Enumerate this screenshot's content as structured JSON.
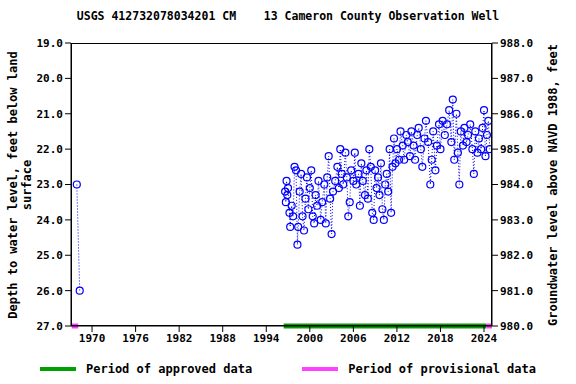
{
  "chart_data": {
    "type": "line",
    "title": "USGS 412732078034201 CM    13 Cameron County Observation Well",
    "x_label": null,
    "y_label": "Depth to water level, feet below land surface",
    "y2_label": "Groundwater level above NAVD 1988, feet",
    "xlim": [
      1967.1,
      2025.1
    ],
    "xticks": [
      1970,
      1976,
      1982,
      1988,
      1994,
      2000,
      2006,
      2012,
      2018,
      2024
    ],
    "ylim": [
      19,
      27
    ],
    "yticks": [
      {
        "value": 19,
        "label": "19.0"
      },
      {
        "value": 20,
        "label": "20.0"
      },
      {
        "value": 21,
        "label": "21.0"
      },
      {
        "value": 22,
        "label": "22.0"
      },
      {
        "value": 23,
        "label": "23.0"
      },
      {
        "value": 24,
        "label": "24.0"
      },
      {
        "value": 25,
        "label": "25.0"
      },
      {
        "value": 26,
        "label": "26.0"
      },
      {
        "value": 27,
        "label": "27.0"
      }
    ],
    "y2lim": [
      980,
      988
    ],
    "y2ticks": [
      {
        "value": 980,
        "label": "980.0"
      },
      {
        "value": 981,
        "label": "981.0"
      },
      {
        "value": 982,
        "label": "982.0"
      },
      {
        "value": 983,
        "label": "983.0"
      },
      {
        "value": 984,
        "label": "984.0"
      },
      {
        "value": 985,
        "label": "985.0"
      },
      {
        "value": 986,
        "label": "986.0"
      },
      {
        "value": 987,
        "label": "987.0"
      },
      {
        "value": 988,
        "label": "988.0"
      }
    ],
    "grid": false,
    "legend": "bottom",
    "x": [
      1967.9,
      1968.3,
      1982,
      1996.6,
      1996.7,
      1996.8,
      1996.9,
      1997.0,
      1997.2,
      1997.3,
      1997.5,
      1997.7,
      1997.9,
      1998.1,
      1998.3,
      1998.4,
      1998.6,
      1998.8,
      1999.0,
      1999.2,
      1999.4,
      1999.6,
      1999.8,
      2000.0,
      2000.2,
      2000.4,
      2000.6,
      2000.8,
      2001.0,
      2001.2,
      2001.5,
      2001.7,
      2002.0,
      2002.2,
      2002.4,
      2002.6,
      2002.8,
      2003.0,
      2003.2,
      2003.5,
      2003.8,
      2004.0,
      2004.2,
      2004.4,
      2004.6,
      2004.9,
      2005.1,
      2005.3,
      2005.5,
      2005.7,
      2006.0,
      2006.2,
      2006.4,
      2006.7,
      2006.9,
      2007.1,
      2007.3,
      2007.6,
      2007.8,
      2008.0,
      2008.2,
      2008.4,
      2008.6,
      2008.8,
      2009.0,
      2009.2,
      2009.4,
      2009.6,
      2009.8,
      2010.0,
      2010.2,
      2010.4,
      2010.6,
      2010.8,
      2011.0,
      2011.2,
      2011.4,
      2011.6,
      2011.8,
      2012.0,
      2012.3,
      2012.5,
      2012.8,
      2013.0,
      2013.3,
      2013.5,
      2013.8,
      2014.0,
      2014.3,
      2014.5,
      2014.8,
      2015.0,
      2015.3,
      2015.5,
      2015.8,
      2016.0,
      2016.3,
      2016.6,
      2016.8,
      2017.0,
      2017.3,
      2017.5,
      2017.8,
      2018.0,
      2018.3,
      2018.6,
      2018.9,
      2019.2,
      2019.5,
      2019.7,
      2019.9,
      2020.2,
      2020.4,
      2020.6,
      2020.8,
      2021.1,
      2021.3,
      2021.6,
      2021.8,
      2022.1,
      2022.4,
      2022.6,
      2022.8,
      2023.1,
      2023.3,
      2023.6,
      2023.8,
      2024.0,
      2024.2,
      2024.4,
      2024.6,
      2024.8
    ],
    "series": [
      {
        "color": "#0000ff",
        "marker": "circle",
        "line_style": "dotted",
        "values": [
          23.0,
          26.0,
          null,
          23.2,
          23.5,
          22.9,
          23.3,
          23.1,
          23.8,
          24.2,
          23.6,
          23.9,
          22.5,
          22.6,
          24.7,
          24.2,
          23.2,
          22.7,
          23.9,
          24.3,
          23.4,
          22.8,
          23.7,
          23.1,
          22.6,
          23.9,
          24.1,
          23.3,
          23.6,
          22.9,
          24.0,
          23.5,
          23.0,
          24.1,
          22.8,
          22.2,
          23.4,
          24.4,
          23.2,
          22.9,
          22.5,
          23.1,
          22.0,
          22.7,
          23.0,
          22.1,
          22.8,
          23.9,
          23.5,
          22.6,
          22.9,
          22.1,
          23.0,
          22.7,
          23.6,
          22.4,
          22.9,
          23.3,
          22.6,
          23.4,
          22.0,
          22.5,
          23.8,
          24.0,
          22.6,
          23.1,
          22.8,
          23.3,
          22.4,
          23.7,
          24.0,
          23.0,
          22.7,
          23.2,
          22.0,
          23.8,
          22.5,
          21.7,
          22.4,
          22.0,
          22.3,
          21.5,
          21.9,
          22.3,
          21.6,
          21.8,
          22.2,
          21.5,
          21.9,
          22.3,
          21.6,
          21.4,
          22.0,
          22.5,
          21.7,
          21.2,
          21.8,
          23.0,
          22.3,
          21.5,
          22.6,
          21.9,
          21.3,
          22.0,
          21.2,
          21.6,
          21.3,
          20.9,
          21.8,
          20.6,
          22.3,
          21.0,
          22.1,
          23.0,
          21.5,
          21.9,
          21.4,
          21.8,
          21.6,
          21.3,
          22.0,
          22.7,
          21.5,
          22.1,
          21.7,
          22.0,
          21.4,
          20.9,
          22.2,
          21.6,
          21.2,
          22.0
        ]
      }
    ],
    "periods": [
      {
        "name": "Period of approved data",
        "color": "#00a000",
        "ranges": [
          [
            1996.4,
            2024.3
          ]
        ]
      },
      {
        "name": "Period of provisional data",
        "color": "#ff40ff",
        "ranges": [
          [
            1967.2,
            1968.1
          ],
          [
            2024.3,
            2025.1
          ]
        ]
      }
    ]
  }
}
